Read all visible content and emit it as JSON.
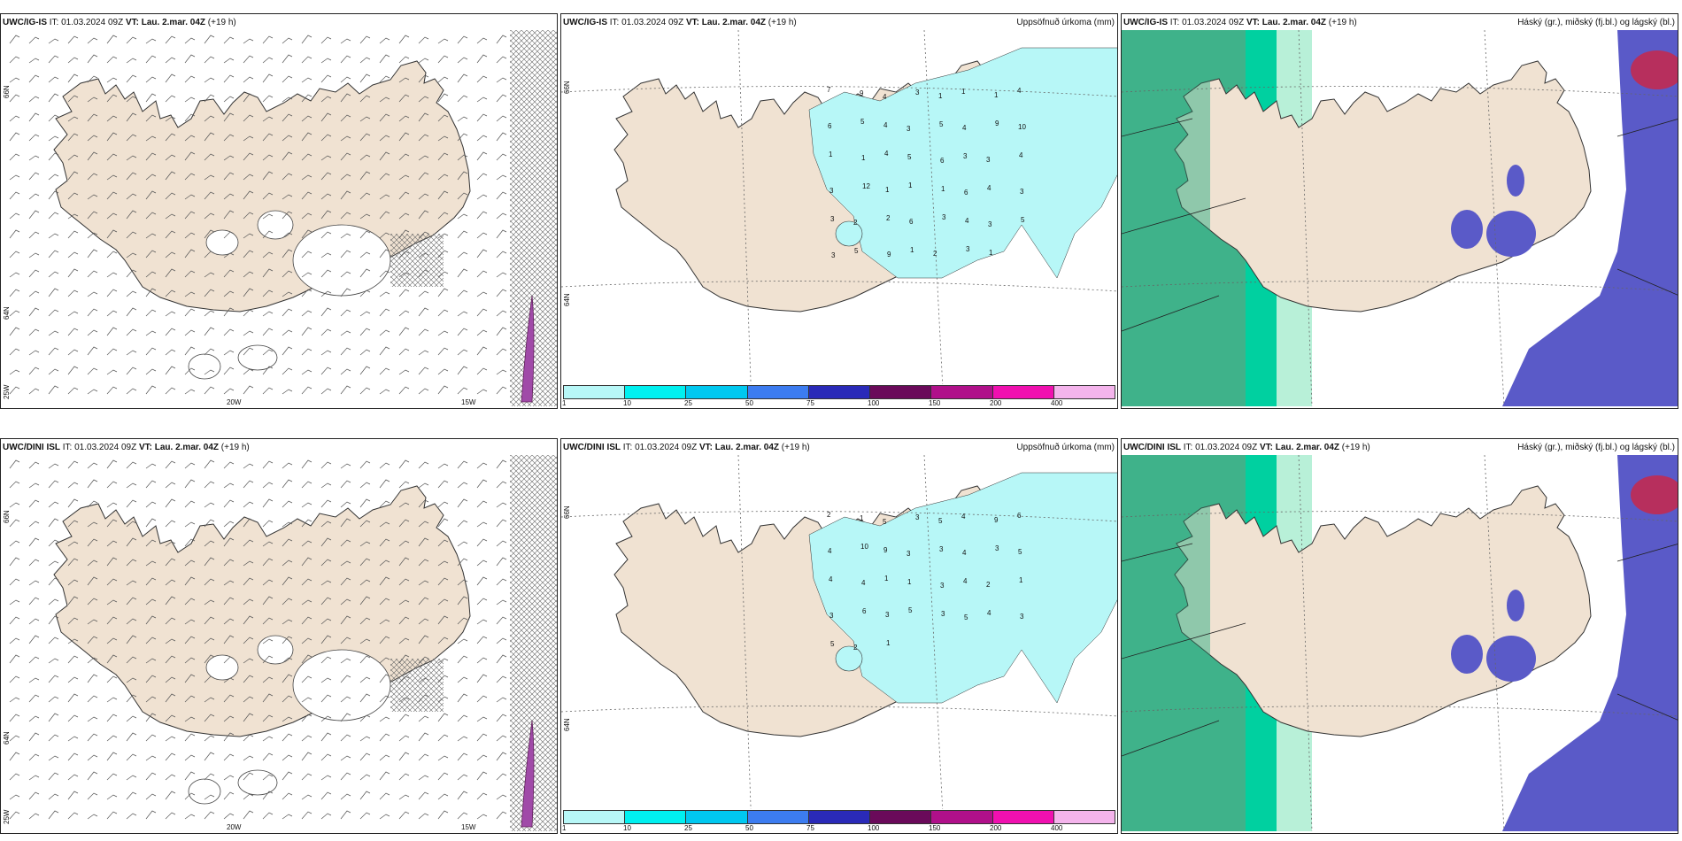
{
  "panels": [
    {
      "model": "UWC/IG-IS",
      "it": "IT: 01.03.2024 09Z",
      "vt_label": "VT:",
      "vt": "Lau. 2.mar. 04Z",
      "lead": "(+19 h)",
      "right_title": ""
    },
    {
      "model": "UWC/IG-IS",
      "it": "IT: 01.03.2024 09Z",
      "vt_label": "VT:",
      "vt": "Lau. 2.mar. 04Z",
      "lead": "(+19 h)",
      "right_title": "Uppsöfnuð úrkoma (mm)"
    },
    {
      "model": "UWC/IG-IS",
      "it": "IT: 01.03.2024 09Z",
      "vt_label": "VT:",
      "vt": "Lau. 2.mar. 04Z",
      "lead": "(+19 h)",
      "right_title": "Háský (gr.), miðský (fj.bl.) og lágský (bl.)"
    },
    {
      "model": "UWC/DINI ISL",
      "it": "IT: 01.03.2024 09Z",
      "vt_label": "VT:",
      "vt": "Lau. 2.mar. 04Z",
      "lead": "(+19 h)",
      "right_title": ""
    },
    {
      "model": "UWC/DINI ISL",
      "it": "IT: 01.03.2024 09Z",
      "vt_label": "VT:",
      "vt": "Lau. 2.mar. 04Z",
      "lead": "(+19 h)",
      "right_title": "Uppsöfnuð úrkoma (mm)"
    },
    {
      "model": "UWC/DINI ISL",
      "it": "IT: 01.03.2024 09Z",
      "vt_label": "VT:",
      "vt": "Lau. 2.mar. 04Z",
      "lead": "(+19 h)",
      "right_title": "Háský (gr.), miðský (fj.bl.) og lágský (bl.)"
    }
  ],
  "axis": {
    "lon_20w": "20W",
    "lon_15w": "15W",
    "lat_66n": "66N",
    "lat_64n": "64N",
    "lat_25w": "25W",
    "lat_66n_r": "66N",
    "lat_64n_r": "64N"
  },
  "precip_scale": {
    "ticks": [
      "1",
      "10",
      "25",
      "50",
      "75",
      "100",
      "150",
      "200",
      "400"
    ],
    "colors": [
      "#b7f7f7",
      "#00f0f0",
      "#00c8f0",
      "#3c7cf0",
      "#2a2ab8",
      "#6a0a5a",
      "#b0108a",
      "#f010b0",
      "#f4b4ec"
    ]
  },
  "precip_labels_top": [
    "7",
    "9",
    "4",
    "3",
    "1",
    "1",
    "1",
    "4",
    "6",
    "5",
    "4",
    "3",
    "5",
    "4",
    "9",
    "10",
    "1",
    "1",
    "4",
    "5",
    "6",
    "3",
    "3",
    "4",
    "3",
    "12",
    "1",
    "1",
    "1",
    "6",
    "4",
    "3",
    "3",
    "2",
    "2",
    "6",
    "3",
    "4",
    "3",
    "5",
    "3",
    "5",
    "9",
    "1",
    "2",
    "3",
    "1"
  ],
  "precip_labels_bottom": [
    "2",
    "1",
    "5",
    "3",
    "5",
    "4",
    "9",
    "6",
    "4",
    "10",
    "9",
    "3",
    "3",
    "4",
    "3",
    "5",
    "4",
    "4",
    "1",
    "1",
    "3",
    "4",
    "2",
    "1",
    "3",
    "6",
    "3",
    "5",
    "3",
    "5",
    "4",
    "3",
    "5",
    "2",
    "1"
  ],
  "colors": {
    "land": "#f0e2d2",
    "sea": "#ffffff",
    "coast": "#333333",
    "precip_light": "#b7f7f7",
    "cloud_high": "#3fb28a",
    "cloud_mid": "#5a5ac8",
    "cloud_low": "#8888d8",
    "cloud_edge": "#00d0a0",
    "high_red": "#c8284a"
  }
}
